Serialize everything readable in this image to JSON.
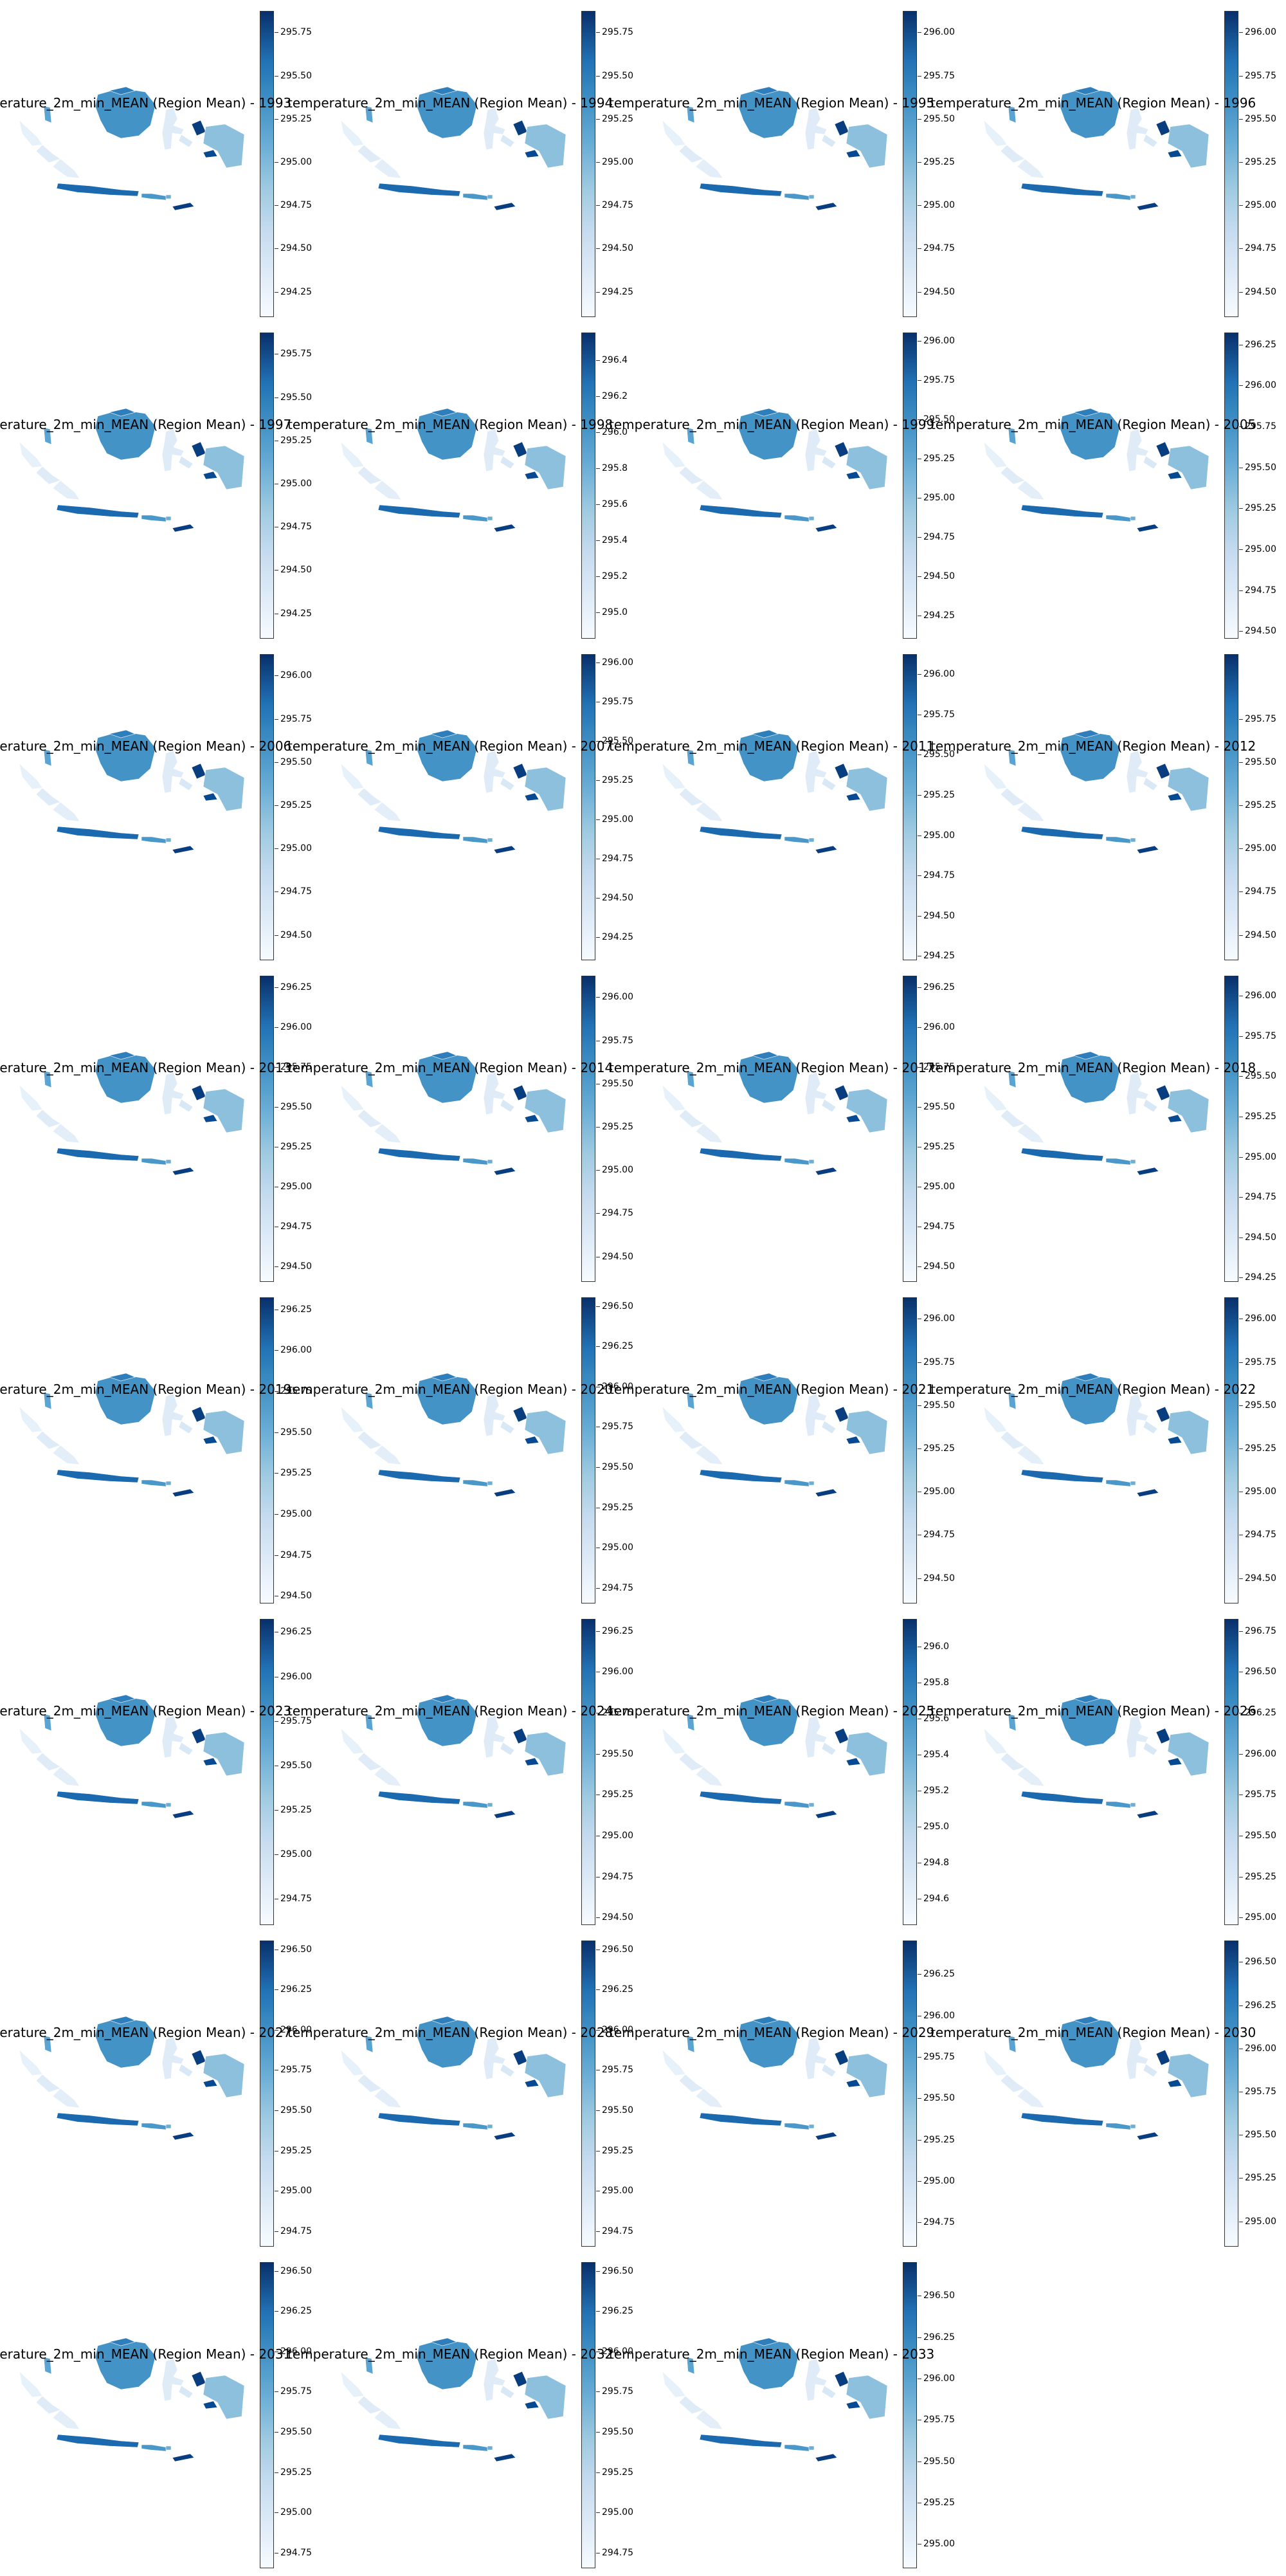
{
  "title_prefix": "temperature_2m_min_MEAN (Region Mean) - ",
  "colormap": "Blues",
  "colors": {
    "light": "#f7fbff",
    "mid": "#6baed6",
    "dark": "#08306b",
    "border": "#ffffff"
  },
  "panels": [
    {
      "year": "1993",
      "ticks": [
        "295.75",
        "295.50",
        "295.25",
        "295.00",
        "294.75",
        "294.50",
        "294.25"
      ],
      "vmin": 294.1,
      "vmax": 295.87
    },
    {
      "year": "1994",
      "ticks": [
        "295.75",
        "295.50",
        "295.25",
        "295.00",
        "294.75",
        "294.50",
        "294.25"
      ],
      "vmin": 294.1,
      "vmax": 295.87
    },
    {
      "year": "1995",
      "ticks": [
        "296.00",
        "295.75",
        "295.50",
        "295.25",
        "295.00",
        "294.75",
        "294.50"
      ],
      "vmin": 294.35,
      "vmax": 296.12
    },
    {
      "year": "1996",
      "ticks": [
        "296.00",
        "295.75",
        "295.50",
        "295.25",
        "295.00",
        "294.75",
        "294.50"
      ],
      "vmin": 294.35,
      "vmax": 296.12
    },
    {
      "year": "1997",
      "ticks": [
        "295.75",
        "295.50",
        "295.25",
        "295.00",
        "294.75",
        "294.50",
        "294.25"
      ],
      "vmin": 294.1,
      "vmax": 295.87
    },
    {
      "year": "1998",
      "ticks": [
        "296.4",
        "296.2",
        "296.0",
        "295.8",
        "295.6",
        "295.4",
        "295.2",
        "295.0"
      ],
      "vmin": 294.85,
      "vmax": 296.55
    },
    {
      "year": "1999",
      "ticks": [
        "296.00",
        "295.75",
        "295.50",
        "295.25",
        "295.00",
        "294.75",
        "294.50",
        "294.25"
      ],
      "vmin": 294.1,
      "vmax": 296.05
    },
    {
      "year": "2005",
      "ticks": [
        "296.25",
        "296.00",
        "295.75",
        "295.50",
        "295.25",
        "295.00",
        "294.75",
        "294.50"
      ],
      "vmin": 294.45,
      "vmax": 296.32
    },
    {
      "year": "2006",
      "ticks": [
        "296.00",
        "295.75",
        "295.50",
        "295.25",
        "295.00",
        "294.75",
        "294.50"
      ],
      "vmin": 294.35,
      "vmax": 296.12
    },
    {
      "year": "2007",
      "ticks": [
        "296.00",
        "295.75",
        "295.50",
        "295.25",
        "295.00",
        "294.75",
        "294.50",
        "294.25"
      ],
      "vmin": 294.1,
      "vmax": 296.05
    },
    {
      "year": "2011",
      "ticks": [
        "296.00",
        "295.75",
        "295.50",
        "295.25",
        "295.00",
        "294.75",
        "294.50",
        "294.25"
      ],
      "vmin": 294.22,
      "vmax": 296.12
    },
    {
      "year": "2012",
      "ticks": [
        "295.75",
        "295.50",
        "295.25",
        "295.00",
        "294.75",
        "294.50"
      ],
      "vmin": 294.35,
      "vmax": 296.12
    },
    {
      "year": "2013",
      "ticks": [
        "296.25",
        "296.00",
        "295.75",
        "295.50",
        "295.25",
        "295.00",
        "294.75",
        "294.50"
      ],
      "vmin": 294.4,
      "vmax": 296.32
    },
    {
      "year": "2014",
      "ticks": [
        "296.00",
        "295.75",
        "295.50",
        "295.25",
        "295.00",
        "294.75",
        "294.50"
      ],
      "vmin": 294.35,
      "vmax": 296.12
    },
    {
      "year": "2017",
      "ticks": [
        "296.25",
        "296.00",
        "295.75",
        "295.50",
        "295.25",
        "295.00",
        "294.75",
        "294.50"
      ],
      "vmin": 294.4,
      "vmax": 296.32
    },
    {
      "year": "2018",
      "ticks": [
        "296.00",
        "295.75",
        "295.50",
        "295.25",
        "295.00",
        "294.75",
        "294.50",
        "294.25"
      ],
      "vmin": 294.22,
      "vmax": 296.12
    },
    {
      "year": "2019",
      "ticks": [
        "296.25",
        "296.00",
        "295.75",
        "295.50",
        "295.25",
        "295.00",
        "294.75",
        "294.50"
      ],
      "vmin": 294.45,
      "vmax": 296.32
    },
    {
      "year": "2020",
      "ticks": [
        "296.50",
        "296.25",
        "296.00",
        "295.75",
        "295.50",
        "295.25",
        "295.00",
        "294.75"
      ],
      "vmin": 294.65,
      "vmax": 296.55
    },
    {
      "year": "2021",
      "ticks": [
        "296.00",
        "295.75",
        "295.50",
        "295.25",
        "295.00",
        "294.75",
        "294.50"
      ],
      "vmin": 294.35,
      "vmax": 296.12
    },
    {
      "year": "2022",
      "ticks": [
        "296.00",
        "295.75",
        "295.50",
        "295.25",
        "295.00",
        "294.75",
        "294.50"
      ],
      "vmin": 294.35,
      "vmax": 296.12
    },
    {
      "year": "2023",
      "ticks": [
        "296.25",
        "296.00",
        "295.75",
        "295.50",
        "295.25",
        "295.00",
        "294.75"
      ],
      "vmin": 294.6,
      "vmax": 296.32
    },
    {
      "year": "2024",
      "ticks": [
        "296.25",
        "296.00",
        "295.75",
        "295.50",
        "295.25",
        "295.00",
        "294.75",
        "294.50"
      ],
      "vmin": 294.45,
      "vmax": 296.32
    },
    {
      "year": "2025",
      "ticks": [
        "296.0",
        "295.8",
        "295.6",
        "295.4",
        "295.2",
        "295.0",
        "294.8",
        "294.6"
      ],
      "vmin": 294.45,
      "vmax": 296.15
    },
    {
      "year": "2026",
      "ticks": [
        "296.75",
        "296.50",
        "296.25",
        "296.00",
        "295.75",
        "295.50",
        "295.25",
        "295.00"
      ],
      "vmin": 294.95,
      "vmax": 296.82
    },
    {
      "year": "2027",
      "ticks": [
        "296.50",
        "296.25",
        "296.00",
        "295.75",
        "295.50",
        "295.25",
        "295.00",
        "294.75"
      ],
      "vmin": 294.65,
      "vmax": 296.55
    },
    {
      "year": "2028",
      "ticks": [
        "296.50",
        "296.25",
        "296.00",
        "295.75",
        "295.50",
        "295.25",
        "295.00",
        "294.75"
      ],
      "vmin": 294.65,
      "vmax": 296.55
    },
    {
      "year": "2029",
      "ticks": [
        "296.25",
        "296.00",
        "295.75",
        "295.50",
        "295.25",
        "295.00",
        "294.75"
      ],
      "vmin": 294.6,
      "vmax": 296.45
    },
    {
      "year": "2030",
      "ticks": [
        "296.50",
        "296.25",
        "296.00",
        "295.75",
        "295.50",
        "295.25",
        "295.00"
      ],
      "vmin": 294.85,
      "vmax": 296.62
    },
    {
      "year": "2031",
      "ticks": [
        "296.50",
        "296.25",
        "296.00",
        "295.75",
        "295.50",
        "295.25",
        "295.00",
        "294.75"
      ],
      "vmin": 294.65,
      "vmax": 296.55
    },
    {
      "year": "2032",
      "ticks": [
        "296.50",
        "296.25",
        "296.00",
        "295.75",
        "295.50",
        "295.25",
        "295.00",
        "294.75"
      ],
      "vmin": 294.65,
      "vmax": 296.55
    },
    {
      "year": "2033",
      "ticks": [
        "296.50",
        "296.25",
        "296.00",
        "295.75",
        "295.50",
        "295.25",
        "295.00"
      ],
      "vmin": 294.85,
      "vmax": 296.7
    }
  ]
}
